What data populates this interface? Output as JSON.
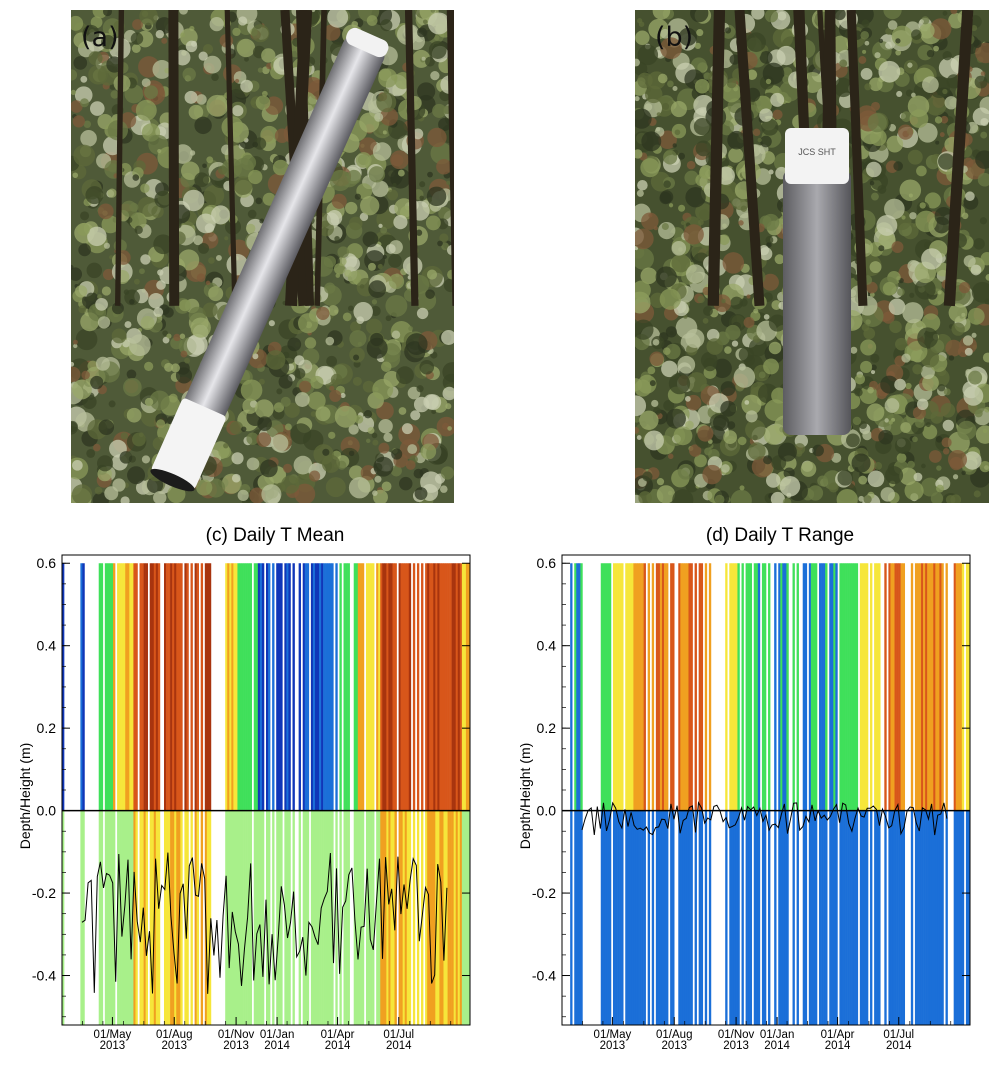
{
  "photos": [
    {
      "label": "(a)",
      "subject": "horizontal sensor tube"
    },
    {
      "label": "(b)",
      "subject": "vertical sensor tube",
      "tag_text": "JCS SHT"
    }
  ],
  "colors": {
    "frozen": "#a8f08a",
    "cool": "#3fe05a",
    "blue": "#1b6fd8",
    "deepblue": "#1036b8",
    "yellow": "#f6e63a",
    "orange": "#f0a020",
    "darkorange": "#d8561a",
    "brown": "#a8340e",
    "contour": "#000000"
  },
  "chart_data": [
    {
      "type": "heatmap",
      "title": "(c) Daily T Mean",
      "ylabel": "Depth/Height (m)",
      "xlabel": "",
      "ylim": [
        -0.52,
        0.62
      ],
      "xlim": [
        "2013-02-15",
        "2014-10-15"
      ],
      "yticks": [
        "0.6",
        "0.4",
        "0.2",
        "0.0",
        "-0.2",
        "-0.4"
      ],
      "xticks": [
        {
          "date": "2013-05-01",
          "label1": "01/May",
          "label2": "2013"
        },
        {
          "date": "2013-08-01",
          "label1": "01/Aug",
          "label2": "2013"
        },
        {
          "date": "2013-11-01",
          "label1": "01/Nov",
          "label2": "2013"
        },
        {
          "date": "2014-01-01",
          "label1": "01/Jan",
          "label2": "2014"
        },
        {
          "date": "2014-04-01",
          "label1": "01/Apr",
          "label2": "2014"
        },
        {
          "date": "2014-07-01",
          "label1": "01/Jul",
          "label2": "2014"
        }
      ],
      "grid": false,
      "reference_line_y": 0.0
    },
    {
      "type": "heatmap",
      "title": "(d) Daily T Range",
      "ylabel": "Depth/Height (m)",
      "xlabel": "",
      "ylim": [
        -0.52,
        0.62
      ],
      "xlim": [
        "2013-02-15",
        "2014-10-15"
      ],
      "yticks": [
        "0.6",
        "0.4",
        "0.2",
        "0.0",
        "-0.2",
        "-0.4"
      ],
      "xticks": [
        {
          "date": "2013-05-01",
          "label1": "01/May",
          "label2": "2013"
        },
        {
          "date": "2013-08-01",
          "label1": "01/Aug",
          "label2": "2013"
        },
        {
          "date": "2013-11-01",
          "label1": "01/Nov",
          "label2": "2013"
        },
        {
          "date": "2014-01-01",
          "label1": "01/Jan",
          "label2": "2014"
        },
        {
          "date": "2014-04-01",
          "label1": "01/Apr",
          "label2": "2014"
        },
        {
          "date": "2014-07-01",
          "label1": "01/Jul",
          "label2": "2014"
        }
      ],
      "grid": false,
      "reference_line_y": 0.0
    }
  ]
}
